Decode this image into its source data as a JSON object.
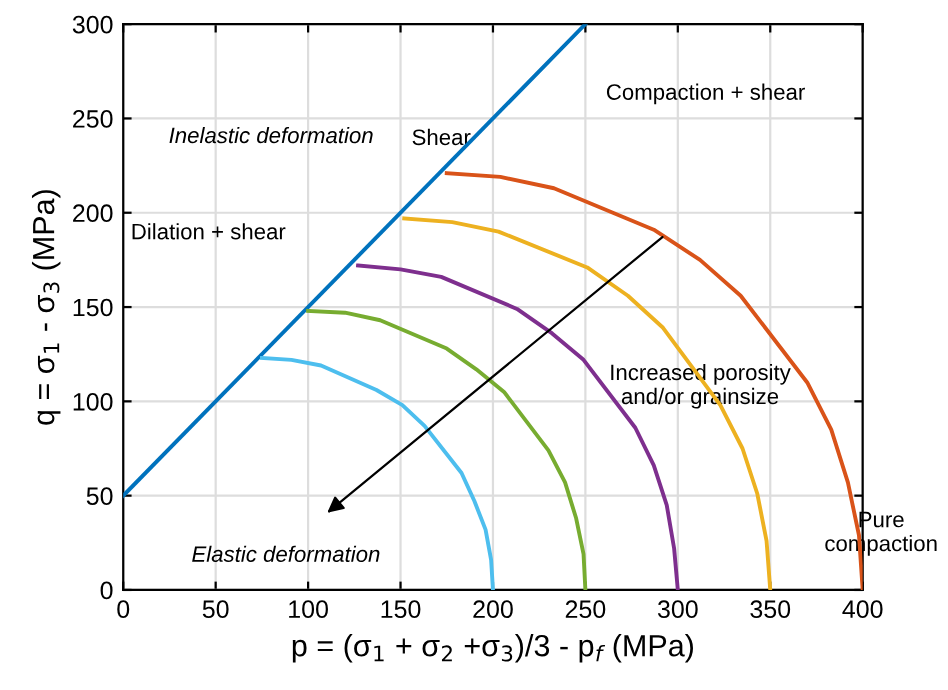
{
  "chart_data": {
    "type": "line",
    "xlabel": "p = (σ$_{1}$ + σ$_{2}$ +σ$_{3}$)/3 - p$_{f}$ (MPa)",
    "ylabel": "q = σ$_{1}$ - σ$_{3}$ (MPa)",
    "xlim": [
      0,
      400
    ],
    "ylim": [
      0,
      300
    ],
    "xticks": [
      0,
      50,
      100,
      150,
      200,
      250,
      300,
      350,
      400
    ],
    "yticks": [
      0,
      50,
      100,
      150,
      200,
      250,
      300
    ],
    "grid": true,
    "series": [
      {
        "color": "#0072bd",
        "x": [
          0,
          250
        ],
        "values": [
          50,
          300
        ]
      },
      {
        "color": "#4dbeee",
        "x": [
          75,
          91,
          107,
          137,
          151,
          163,
          183,
          190,
          196,
          199,
          200
        ],
        "values": [
          123,
          122,
          119,
          106,
          98,
          87,
          62,
          47,
          32,
          16,
          0
        ]
      },
      {
        "color": "#77ac30",
        "x": [
          100,
          120,
          139,
          175,
          191,
          206,
          230,
          239,
          245,
          249,
          250
        ],
        "values": [
          148,
          147,
          143,
          128,
          117,
          105,
          74,
          57,
          38,
          19,
          0
        ]
      },
      {
        "color": "#7e2f8e",
        "x": [
          127,
          150,
          172,
          213,
          232,
          249,
          277,
          287,
          294,
          298,
          300
        ],
        "values": [
          172,
          170,
          166,
          149,
          136,
          122,
          86,
          66,
          45,
          22,
          0
        ]
      },
      {
        "color": "#edb120",
        "x": [
          152,
          178,
          203,
          251,
          273,
          292,
          323,
          335,
          343,
          348,
          350
        ],
        "values": [
          197,
          195,
          190,
          171,
          156,
          139,
          98,
          75,
          51,
          26,
          0
        ]
      },
      {
        "color": "#d95319",
        "x": [
          175,
          204,
          233,
          287,
          312,
          334,
          370,
          383,
          392,
          398,
          400
        ],
        "values": [
          221,
          219,
          213,
          191,
          175,
          156,
          110,
          85,
          57,
          29,
          0
        ]
      }
    ],
    "annotations": [
      "Inelastic deformation",
      "Shear",
      "Compaction + shear",
      "Dilation + shear",
      "Increased porosity\nand/or grainsize",
      "Elastic deformation",
      "Pure\ncompaction"
    ]
  }
}
